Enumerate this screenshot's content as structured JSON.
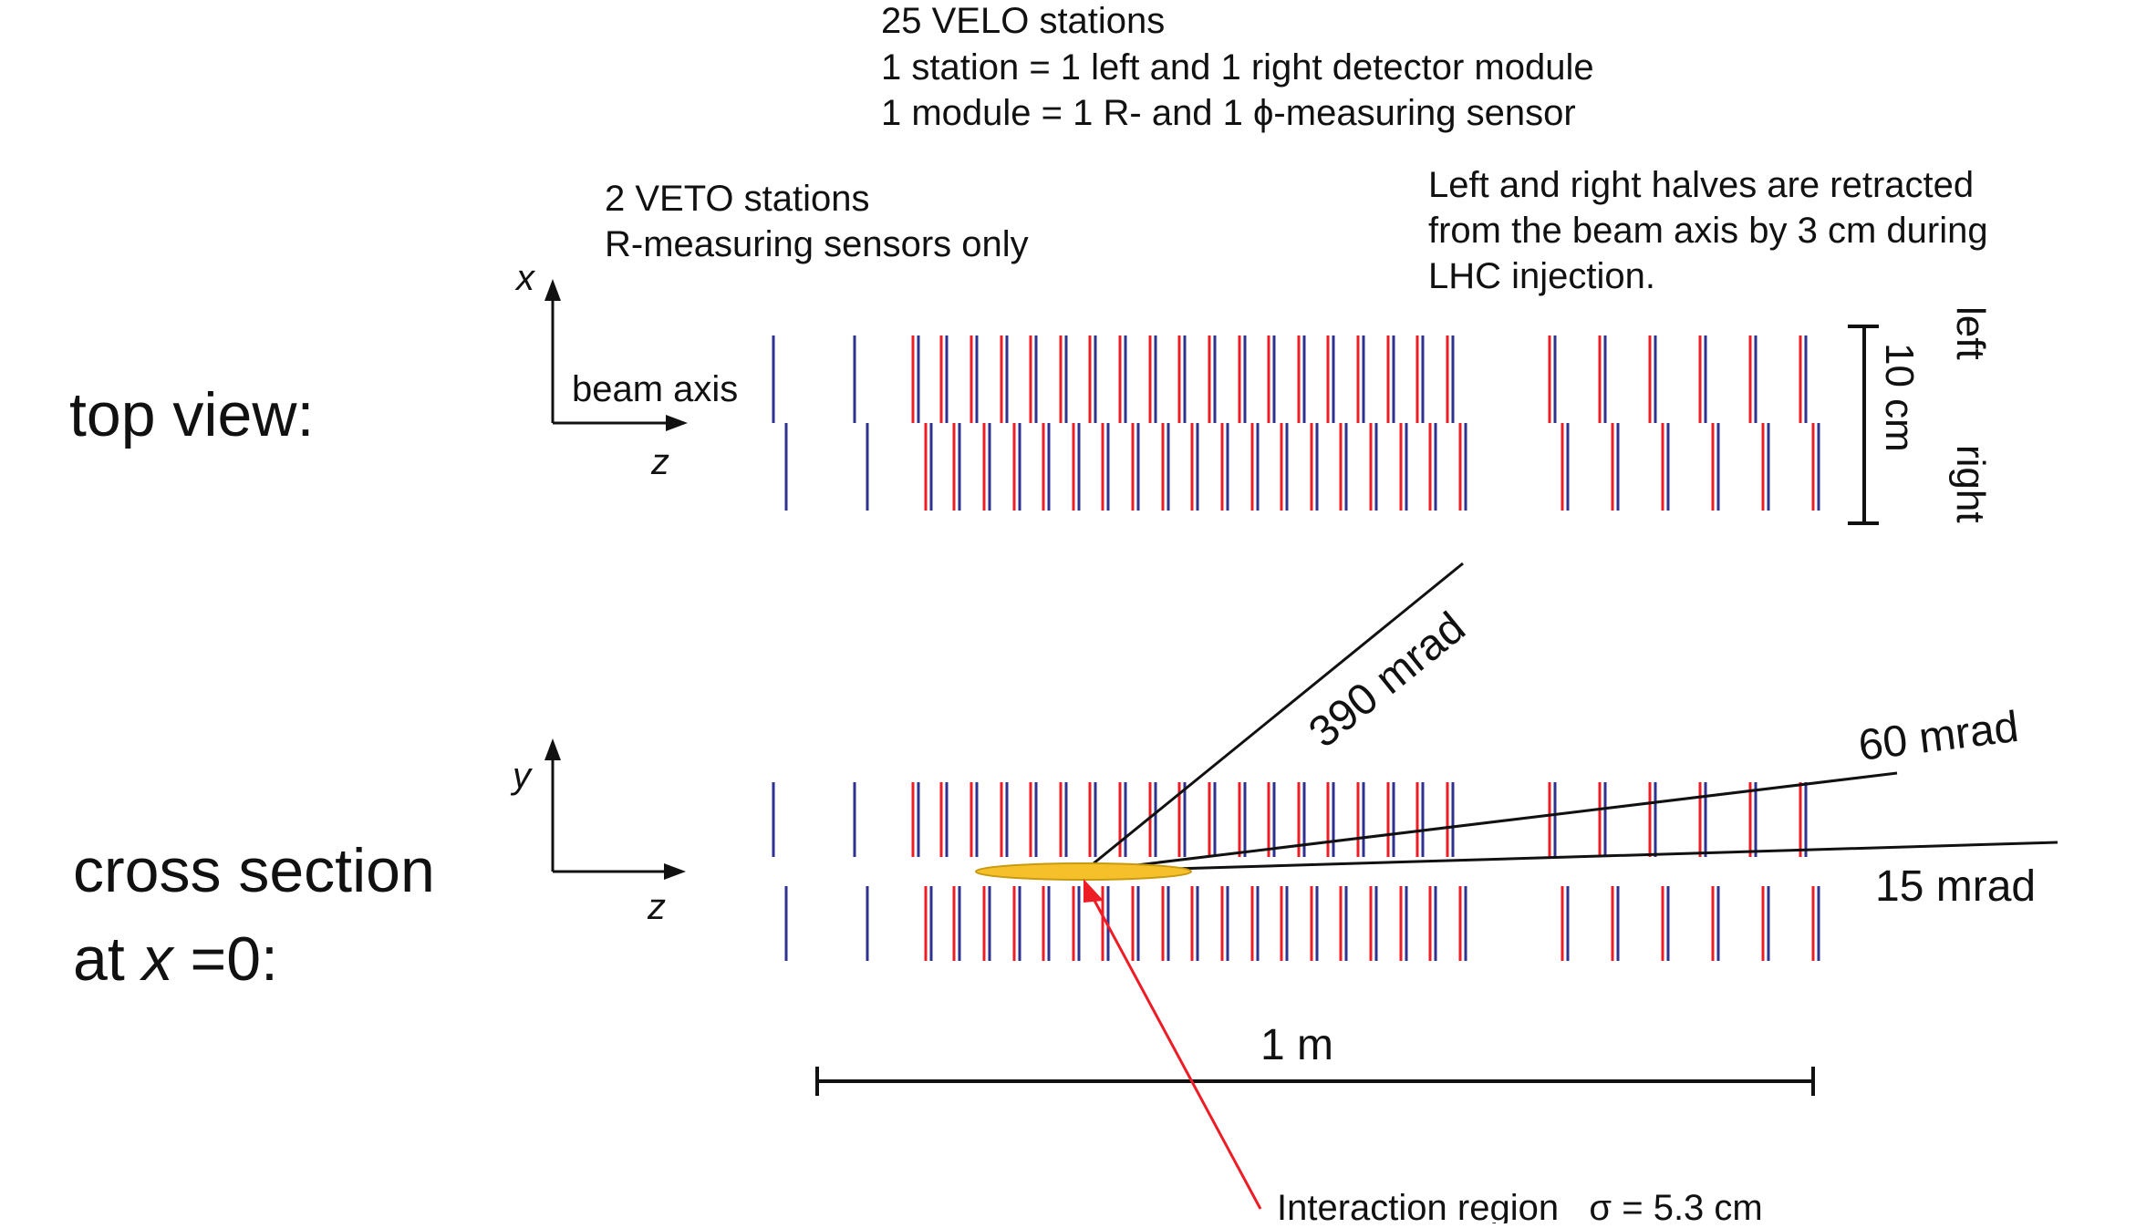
{
  "colors": {
    "r_sensor": "#ee1c25",
    "phi_sensor": "#2e3192",
    "veto_sensor": "#2e3192",
    "interaction_fill": "#f6c02a",
    "interaction_stroke": "#c89a10",
    "pointer_arrow": "#ee1c25",
    "lines": "#111111"
  },
  "header": {
    "velo_lines": [
      "25 VELO stations",
      "1 station  = 1 left and 1 right detector module",
      "1 module = 1 R- and 1 ϕ-measuring sensor"
    ],
    "veto_lines": [
      "2 VETO stations",
      "R-measuring sensors only"
    ],
    "retract_lines": [
      "Left and right halves are retracted",
      "from the beam axis by 3 cm during",
      "LHC injection."
    ]
  },
  "top_view": {
    "title": "top view:",
    "x_axis_label": "x",
    "z_axis_label": "z",
    "beam_axis_label": "beam axis",
    "scale_label": "10 cm",
    "left_label": "left",
    "right_label": "right"
  },
  "cross_section": {
    "title_line1": "cross section",
    "title_line2_prefix": "at ",
    "title_line2_var": "x",
    "title_line2_suffix": " =0:",
    "y_axis_label": "y",
    "z_axis_label": "z",
    "angle_labels": [
      "390 mrad",
      "60 mrad",
      "15 mrad"
    ],
    "scale_label": "1 m",
    "interaction_label": "Interaction region   σ = 5.3 cm"
  },
  "stations": {
    "veto_count": 2,
    "velo_count": 25,
    "retraction_cm": 3,
    "acceptance_angles_mrad": [
      390,
      60,
      15
    ],
    "interaction_sigma_cm": 5.3,
    "scale_length_m": 1
  }
}
